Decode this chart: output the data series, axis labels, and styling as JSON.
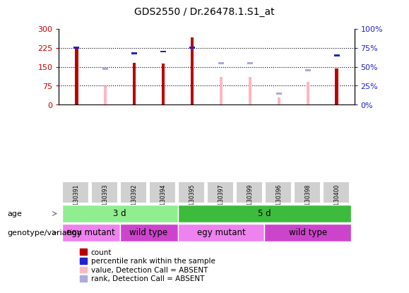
{
  "title": "GDS2550 / Dr.26478.1.S1_at",
  "samples": [
    "GSM130391",
    "GSM130393",
    "GSM130392",
    "GSM130394",
    "GSM130395",
    "GSM130397",
    "GSM130399",
    "GSM130396",
    "GSM130398",
    "GSM130400"
  ],
  "count_values": [
    220,
    0,
    165,
    163,
    265,
    0,
    0,
    0,
    0,
    143
  ],
  "percentile_rank": [
    75,
    0,
    68,
    70,
    75,
    0,
    0,
    0,
    0,
    65
  ],
  "absent_value": [
    0,
    72,
    0,
    0,
    0,
    110,
    110,
    30,
    90,
    0
  ],
  "absent_rank": [
    0,
    47,
    0,
    0,
    0,
    55,
    55,
    15,
    45,
    0
  ],
  "has_count": [
    true,
    false,
    true,
    true,
    true,
    false,
    false,
    false,
    false,
    true
  ],
  "has_absent": [
    false,
    true,
    false,
    false,
    false,
    true,
    true,
    true,
    true,
    false
  ],
  "ylim_left": [
    0,
    300
  ],
  "ylim_right": [
    0,
    100
  ],
  "yticks_left": [
    0,
    75,
    150,
    225,
    300
  ],
  "yticks_right": [
    0,
    25,
    50,
    75,
    100
  ],
  "ytick_labels_left": [
    "0",
    "75",
    "150",
    "225",
    "300"
  ],
  "ytick_labels_right": [
    "0%",
    "25%",
    "50%",
    "75%",
    "100%"
  ],
  "age_groups": [
    {
      "label": "3 d",
      "start": 0,
      "end": 4,
      "color": "#90ee90"
    },
    {
      "label": "5 d",
      "start": 4,
      "end": 10,
      "color": "#3dbb3d"
    }
  ],
  "genotype_groups": [
    {
      "label": "egy mutant",
      "start": 0,
      "end": 2,
      "color": "#ee82ee"
    },
    {
      "label": "wild type",
      "start": 2,
      "end": 4,
      "color": "#cc44cc"
    },
    {
      "label": "egy mutant",
      "start": 4,
      "end": 7,
      "color": "#ee82ee"
    },
    {
      "label": "wild type",
      "start": 7,
      "end": 10,
      "color": "#cc44cc"
    }
  ],
  "bar_width": 0.12,
  "rank_bar_width": 0.12,
  "count_color": "#bb0000",
  "rank_color": "#2222cc",
  "absent_value_color": "#ffb6c1",
  "absent_rank_color": "#aaaadd",
  "grid_color": "#000000",
  "bg_color": "#ffffff",
  "plot_bg_color": "#ffffff",
  "legend_items": [
    {
      "label": "count",
      "color": "#bb0000"
    },
    {
      "label": "percentile rank within the sample",
      "color": "#2222cc"
    },
    {
      "label": "value, Detection Call = ABSENT",
      "color": "#ffb6c1"
    },
    {
      "label": "rank, Detection Call = ABSENT",
      "color": "#aaaadd"
    }
  ],
  "tick_label_left_color": "#cc0000",
  "tick_label_right_color": "#2222cc",
  "age_label": "age",
  "genotype_label": "genotype/variation",
  "xticklabel_bg": "#d0d0d0"
}
